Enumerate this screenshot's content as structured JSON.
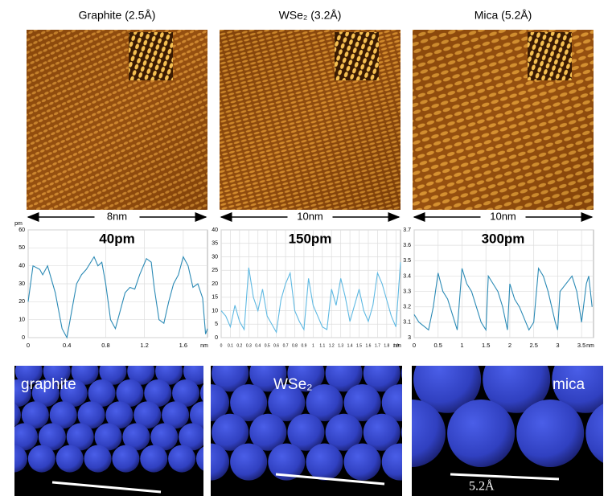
{
  "panels": [
    {
      "title": "Graphite (2.5Å)",
      "scale": "8nm",
      "model_label": "graphite"
    },
    {
      "title": "WSe₂ (3.2Å)",
      "scale": "10nm",
      "model_label": "WSe₂"
    },
    {
      "title": "Mica (5.2Å)",
      "scale": "10nm",
      "model_label": "mica",
      "model_scale": "5.2Å"
    }
  ],
  "chart_data": [
    {
      "type": "line",
      "title": "40pm",
      "ylabel": "pm",
      "xlabel": "nm",
      "color": "#2b8ab5",
      "grid": true,
      "x": [
        0,
        0.05,
        0.12,
        0.15,
        0.2,
        0.28,
        0.35,
        0.4,
        0.45,
        0.5,
        0.55,
        0.6,
        0.68,
        0.72,
        0.76,
        0.8,
        0.85,
        0.9,
        0.95,
        1.0,
        1.05,
        1.1,
        1.15,
        1.22,
        1.27,
        1.3,
        1.35,
        1.4,
        1.45,
        1.5,
        1.55,
        1.6,
        1.65,
        1.7,
        1.75,
        1.8,
        1.83,
        1.85
      ],
      "values": [
        20,
        40,
        38,
        35,
        40,
        25,
        5,
        0,
        15,
        30,
        35,
        38,
        45,
        40,
        42,
        30,
        10,
        5,
        15,
        25,
        28,
        27,
        35,
        44,
        42,
        28,
        10,
        8,
        20,
        30,
        35,
        45,
        40,
        28,
        30,
        22,
        2,
        5
      ],
      "xlim": [
        0,
        1.85
      ],
      "ylim": [
        0,
        60
      ],
      "xticks": [
        0,
        0.4,
        0.8,
        1.2,
        1.6
      ],
      "yticks": [
        0,
        10,
        20,
        30,
        40,
        50,
        60
      ]
    },
    {
      "type": "line",
      "title": "150pm",
      "xlabel": "nm",
      "color": "#5fb9e2",
      "grid": true,
      "x": [
        0,
        0.05,
        0.1,
        0.15,
        0.2,
        0.25,
        0.3,
        0.35,
        0.4,
        0.45,
        0.5,
        0.55,
        0.6,
        0.65,
        0.7,
        0.75,
        0.8,
        0.85,
        0.9,
        0.95,
        1.0,
        1.05,
        1.1,
        1.15,
        1.2,
        1.25,
        1.3,
        1.35,
        1.4,
        1.45,
        1.5,
        1.55,
        1.6,
        1.65,
        1.7,
        1.75,
        1.8,
        1.85,
        1.9,
        1.95
      ],
      "values": [
        10,
        8,
        4,
        12,
        6,
        3,
        26,
        15,
        10,
        18,
        8,
        5,
        2,
        14,
        20,
        24,
        10,
        6,
        3,
        22,
        12,
        8,
        4,
        3,
        18,
        12,
        22,
        15,
        6,
        12,
        18,
        10,
        6,
        12,
        24,
        20,
        14,
        8,
        4,
        28
      ],
      "xlim": [
        0,
        1.95
      ],
      "ylim": [
        0,
        40
      ],
      "xticks": [
        0,
        0.1,
        0.2,
        0.3,
        0.4,
        0.5,
        0.6,
        0.7,
        0.8,
        0.9,
        1,
        1.1,
        1.2,
        1.3,
        1.4,
        1.5,
        1.6,
        1.7,
        1.8,
        1.9
      ],
      "yticks": [
        0,
        5,
        10,
        15,
        20,
        25,
        30,
        35,
        40
      ]
    },
    {
      "type": "line",
      "title": "300pm",
      "xlabel": "nm",
      "color": "#2b8ab5",
      "grid": true,
      "x": [
        0,
        0.1,
        0.3,
        0.4,
        0.5,
        0.6,
        0.7,
        0.8,
        0.9,
        1.0,
        1.1,
        1.2,
        1.3,
        1.4,
        1.5,
        1.55,
        1.65,
        1.75,
        1.85,
        1.95,
        2.0,
        2.1,
        2.2,
        2.4,
        2.5,
        2.6,
        2.7,
        2.8,
        2.95,
        3.0,
        3.05,
        3.3,
        3.4,
        3.5,
        3.6,
        3.65,
        3.72
      ],
      "values": [
        3.15,
        3.1,
        3.05,
        3.2,
        3.42,
        3.3,
        3.25,
        3.15,
        3.05,
        3.45,
        3.35,
        3.3,
        3.2,
        3.1,
        3.05,
        3.4,
        3.35,
        3.3,
        3.2,
        3.05,
        3.35,
        3.25,
        3.2,
        3.05,
        3.1,
        3.45,
        3.4,
        3.3,
        3.1,
        3.05,
        3.3,
        3.4,
        3.3,
        3.1,
        3.35,
        3.4,
        3.2
      ],
      "xlim": [
        0,
        3.75
      ],
      "ylim": [
        3,
        3.7
      ],
      "xticks": [
        0,
        0.5,
        1,
        1.5,
        2,
        2.5,
        3,
        3.5
      ],
      "yticks": [
        3,
        3.1,
        3.2,
        3.3,
        3.4,
        3.5,
        3.6,
        3.7
      ]
    }
  ]
}
